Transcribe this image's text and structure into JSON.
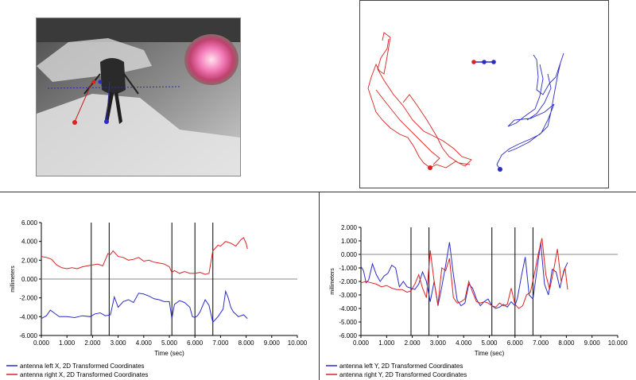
{
  "colors": {
    "left_series": "#2c2cc8",
    "right_series": "#dd2222",
    "event_lines": "#000000",
    "zero_line": "#888888"
  },
  "video": {
    "description_icon": "insect-video-frame-icon"
  },
  "trajectory": {
    "left_color": "#2c2cc8",
    "right_color": "#dd2222"
  },
  "chart_data": [
    {
      "type": "line",
      "title": "",
      "xlabel": "Time (sec)",
      "ylabel": "millimeters",
      "xlim": [
        0,
        10
      ],
      "ylim": [
        -6,
        6
      ],
      "xticks": [
        "0.000",
        "1.000",
        "2.000",
        "3.000",
        "4.000",
        "5.000",
        "6.000",
        "7.000",
        "8.000",
        "9.000",
        "10.000"
      ],
      "yticks": [
        "6.000",
        "4.000",
        "2.000",
        "0.000",
        "-2.000",
        "-4.000",
        "-6.000"
      ],
      "event_times": [
        1.95,
        2.65,
        5.1,
        6.0,
        6.7
      ],
      "series": [
        {
          "name": "antenna left X, 2D Transformed Coordinates",
          "color": "#2c2cc8",
          "x": [
            0.0,
            0.2,
            0.35,
            0.5,
            0.7,
            1.0,
            1.3,
            1.6,
            1.9,
            2.1,
            2.3,
            2.5,
            2.7,
            2.85,
            3.0,
            3.2,
            3.4,
            3.6,
            3.8,
            4.0,
            4.2,
            4.4,
            4.6,
            4.8,
            5.0,
            5.1,
            5.2,
            5.4,
            5.6,
            5.8,
            5.9,
            6.0,
            6.1,
            6.2,
            6.4,
            6.55,
            6.7,
            6.9,
            7.1,
            7.2,
            7.3,
            7.4,
            7.5,
            7.7,
            7.9,
            8.05
          ],
          "y": [
            -4.2,
            -3.9,
            -3.3,
            -3.6,
            -4.0,
            -4.0,
            -4.1,
            -3.9,
            -4.0,
            -3.7,
            -3.6,
            -3.9,
            -3.8,
            -1.9,
            -3.0,
            -2.4,
            -2.2,
            -2.5,
            -1.5,
            -1.6,
            -1.8,
            -2.1,
            -2.2,
            -2.4,
            -2.4,
            -4.2,
            -2.7,
            -2.3,
            -2.5,
            -3.0,
            -4.0,
            -4.1,
            -3.9,
            -3.5,
            -2.2,
            -2.8,
            -4.6,
            -4.0,
            -3.2,
            -1.3,
            -2.0,
            -3.0,
            -3.5,
            -4.0,
            -3.8,
            -4.2
          ]
        },
        {
          "name": "antenna right X, 2D Transformed Coordinates",
          "color": "#dd2222",
          "x": [
            0.0,
            0.2,
            0.4,
            0.6,
            0.8,
            1.0,
            1.2,
            1.4,
            1.6,
            1.8,
            2.0,
            2.2,
            2.4,
            2.6,
            2.7,
            2.8,
            3.0,
            3.2,
            3.4,
            3.6,
            3.8,
            4.0,
            4.2,
            4.4,
            4.6,
            4.8,
            5.0,
            5.1,
            5.2,
            5.4,
            5.6,
            5.8,
            6.0,
            6.2,
            6.4,
            6.55,
            6.7,
            6.9,
            7.0,
            7.2,
            7.4,
            7.6,
            7.8,
            7.9,
            8.0,
            8.05
          ],
          "y": [
            2.4,
            2.3,
            2.1,
            1.5,
            1.2,
            1.1,
            1.2,
            1.1,
            1.3,
            1.4,
            1.5,
            1.6,
            1.4,
            2.7,
            2.6,
            3.0,
            2.4,
            2.3,
            2.0,
            2.1,
            2.3,
            1.9,
            2.0,
            1.8,
            1.7,
            1.6,
            1.3,
            0.7,
            0.9,
            0.6,
            0.8,
            0.6,
            0.6,
            0.7,
            0.5,
            0.6,
            3.0,
            3.6,
            3.5,
            4.0,
            3.8,
            3.5,
            4.2,
            4.4,
            3.8,
            3.2
          ]
        }
      ]
    },
    {
      "type": "line",
      "title": "",
      "xlabel": "Time (sec)",
      "ylabel": "millimeters",
      "xlim": [
        0,
        10
      ],
      "ylim": [
        -6,
        2
      ],
      "xticks": [
        "0.000",
        "1.000",
        "2.000",
        "3.000",
        "4.000",
        "5.000",
        "6.000",
        "7.000",
        "8.000",
        "9.000",
        "10.000"
      ],
      "yticks": [
        "2.000",
        "1.000",
        "0.000",
        "-1.000",
        "-2.000",
        "-3.000",
        "-4.000",
        "-5.000",
        "-6.000"
      ],
      "event_times": [
        1.95,
        2.65,
        5.1,
        6.0,
        6.7
      ],
      "series": [
        {
          "name": "antenna left Y, 2D Transformed Coordinates",
          "color": "#2c2cc8",
          "x": [
            0.0,
            0.1,
            0.2,
            0.3,
            0.45,
            0.6,
            0.75,
            0.9,
            1.05,
            1.2,
            1.35,
            1.5,
            1.65,
            1.8,
            1.95,
            2.1,
            2.25,
            2.4,
            2.55,
            2.7,
            2.85,
            3.0,
            3.15,
            3.3,
            3.45,
            3.6,
            3.75,
            3.9,
            4.05,
            4.2,
            4.35,
            4.5,
            4.65,
            4.8,
            4.95,
            5.1,
            5.25,
            5.4,
            5.55,
            5.7,
            5.85,
            6.0,
            6.1,
            6.25,
            6.4,
            6.55,
            6.7,
            6.85,
            7.0,
            7.15,
            7.3,
            7.45,
            7.6,
            7.75,
            7.9,
            8.05
          ],
          "y": [
            -0.9,
            -1.2,
            -2.1,
            -1.9,
            -0.7,
            -1.5,
            -2.0,
            -1.6,
            -1.4,
            -0.8,
            -1.0,
            -2.4,
            -2.0,
            -2.4,
            -2.5,
            -2.6,
            -2.2,
            -1.3,
            -2.0,
            -3.5,
            -2.0,
            -3.8,
            -2.4,
            -0.8,
            0.9,
            -1.5,
            -3.4,
            -3.8,
            -3.6,
            -2.2,
            -2.5,
            -3.3,
            -3.8,
            -3.5,
            -3.3,
            -3.8,
            -4.0,
            -3.9,
            -3.7,
            -3.9,
            -3.5,
            -3.8,
            -3.2,
            -1.6,
            -0.2,
            -3.0,
            -3.3,
            -1.2,
            0.9,
            -2.2,
            -3.0,
            -1.1,
            -1.3,
            -2.5,
            -1.2,
            -0.6
          ]
        },
        {
          "name": "antenna right Y, 2D Transformed Coordinates",
          "color": "#dd2222",
          "x": [
            0.0,
            0.2,
            0.4,
            0.6,
            0.8,
            1.0,
            1.2,
            1.4,
            1.6,
            1.8,
            1.95,
            2.1,
            2.25,
            2.4,
            2.55,
            2.7,
            2.85,
            3.0,
            3.15,
            3.3,
            3.45,
            3.6,
            3.75,
            3.9,
            4.05,
            4.2,
            4.35,
            4.5,
            4.65,
            4.8,
            4.95,
            5.1,
            5.25,
            5.4,
            5.55,
            5.7,
            5.85,
            6.0,
            6.15,
            6.3,
            6.45,
            6.6,
            6.75,
            6.9,
            7.05,
            7.2,
            7.35,
            7.5,
            7.65,
            7.8,
            7.95,
            8.05
          ],
          "y": [
            -2.1,
            -2.0,
            -2.1,
            -2.2,
            -2.4,
            -2.3,
            -2.5,
            -2.6,
            -2.6,
            -2.8,
            -2.7,
            -2.2,
            -1.5,
            -2.5,
            -3.2,
            0.3,
            -2.0,
            -3.7,
            -1.0,
            -1.2,
            -0.3,
            -3.2,
            -3.6,
            -3.5,
            -3.3,
            -2.0,
            -2.8,
            -3.5,
            -3.6,
            -3.5,
            -3.6,
            -3.8,
            -3.9,
            -3.6,
            -3.8,
            -3.7,
            -2.5,
            -3.7,
            -4.0,
            -3.8,
            -3.0,
            -2.8,
            -1.5,
            0.0,
            1.2,
            -1.5,
            -2.6,
            -1.2,
            0.4,
            -2.0,
            -1.0,
            -2.6
          ]
        }
      ]
    }
  ]
}
